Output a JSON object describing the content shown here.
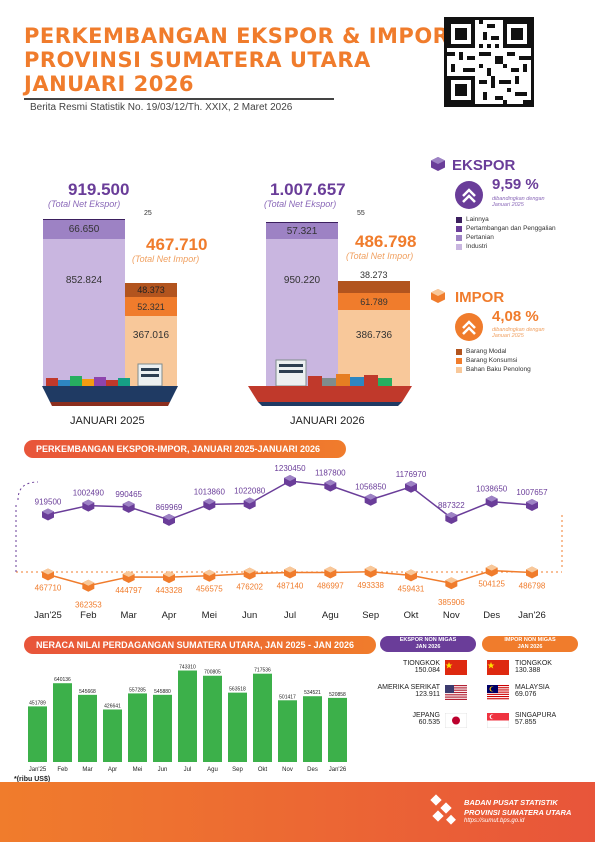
{
  "header": {
    "title_lines": [
      "PERKEMBANGAN EKSPOR & IMPOR",
      "PROVINSI SUMATERA UTARA",
      "JANUARI 2026"
    ],
    "subtitle": "Berita Resmi Statistik No. 19/03/12/Th. XXIX, 2 Maret 2026"
  },
  "comparison": {
    "jan2025": {
      "label": "JANUARI 2025",
      "ekspor_total": "919.500",
      "ekspor_total_label": "(Total Net Ekspor)",
      "impor_total": "467.710",
      "impor_total_label": "(Total Net Impor)",
      "ekspor_lainnya": "25",
      "ekspor_pertanian": "66.650",
      "ekspor_industri": "852.824",
      "impor_modal": "48.373",
      "impor_konsumsi": "52.321",
      "impor_bahan_baku": "367.016"
    },
    "jan2026": {
      "label": "JANUARI 2026",
      "ekspor_total": "1.007.657",
      "ekspor_total_label": "(Total Net Ekspor)",
      "impor_total": "486.798",
      "impor_total_label": "(Total Net Impor)",
      "ekspor_lainnya": "55",
      "ekspor_pertanian": "57.321",
      "ekspor_industri": "950.220",
      "impor_modal": "38.273",
      "impor_konsumsi": "61.789",
      "impor_bahan_baku": "386.736"
    }
  },
  "ekspor_summary": {
    "title": "EKSPOR",
    "change": "9,59 %",
    "note": "dibandingkan dengan Januari 2025",
    "legend": [
      "Lainnya",
      "Pertambangan dan Penggalian",
      "Pertanian",
      "Industri"
    ]
  },
  "impor_summary": {
    "title": "IMPOR",
    "change": "4,08 %",
    "note": "dibandingkan dengan Januari 2025",
    "legend": [
      "Barang Modal",
      "Barang Konsumsi",
      "Bahan Baku Penolong"
    ]
  },
  "colors": {
    "orange": "#f07c2c",
    "purple": "#6a3d99",
    "light_purple": "#c9b6e0",
    "mid_purple": "#9d82c4",
    "dark_purple": "#3b1f5e",
    "light_orange": "#f8c89a",
    "mid_orange": "#f07c2c",
    "dark_orange": "#b2541e",
    "green": "#3cb04a"
  },
  "trend_section": {
    "banner": "PERKEMBANGAN EKSPOR-IMPOR, JANUARI 2025-JANUARI 2026"
  },
  "balance_section": {
    "banner": "NERACA NILAI PERDAGANGAN SUMATERA UTARA, JAN 2025 - JAN 2026",
    "unit_note": "*(ribu US$)"
  },
  "chart_data": [
    {
      "type": "line",
      "categories": [
        "Jan'25",
        "Feb",
        "Mar",
        "Apr",
        "Mei",
        "Jun",
        "Jul",
        "Agu",
        "Sep",
        "Okt",
        "Nov",
        "Des",
        "Jan'26"
      ],
      "series": [
        {
          "values": [
            919500,
            1002490,
            990465,
            869969,
            1013860,
            1022080,
            1230450,
            1187800,
            1056850,
            1176970,
            887322,
            1038650,
            1007657
          ]
        },
        {
          "values": [
            467710,
            362353,
            444797,
            443328,
            456575,
            476202,
            487140,
            486997,
            493338,
            459431,
            385906,
            504125,
            486798
          ]
        }
      ]
    },
    {
      "type": "bar",
      "categories": [
        "Jan'25",
        "Feb",
        "Mar",
        "Apr",
        "Mei",
        "Jun",
        "Jul",
        "Agu",
        "Sep",
        "Okt",
        "Nov",
        "Des",
        "Jan'26"
      ],
      "values": [
        451789,
        640136,
        545668,
        426641,
        557285,
        545880,
        743310,
        700805,
        563518,
        717536,
        501417,
        534521,
        520858
      ]
    }
  ],
  "partners": {
    "ekspor_title": "EKSPOR NON MIGAS",
    "ekspor_sub": "JAN 2026",
    "impor_title": "IMPOR NON MIGAS",
    "impor_sub": "JAN 2026",
    "ekspor": [
      {
        "name": "TIONGKOK",
        "value": "150.084"
      },
      {
        "name": "AMERIKA SERIKAT",
        "value": "123.911"
      },
      {
        "name": "JEPANG",
        "value": "60.535"
      }
    ],
    "impor": [
      {
        "name": "TIONGKOK",
        "value": "130.388"
      },
      {
        "name": "MALAYSIA",
        "value": "69.076"
      },
      {
        "name": "SINGAPURA",
        "value": "57.855"
      }
    ]
  },
  "footer": {
    "org1": "BADAN PUSAT STATISTIK",
    "org2": "PROVINSI SUMATERA UTARA",
    "url": "https://sumut.bps.go.id"
  }
}
